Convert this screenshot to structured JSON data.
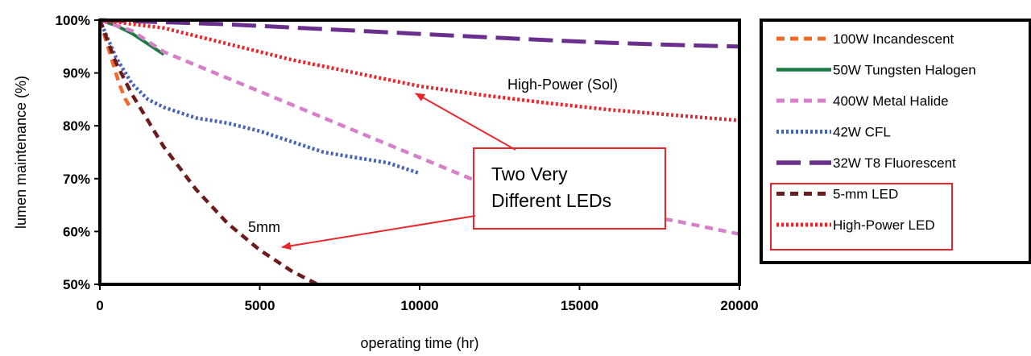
{
  "chart_data": {
    "type": "line",
    "xlabel": "operating time (hr)",
    "ylabel": "lumen maintenance (%)",
    "xlim": [
      0,
      20000
    ],
    "ylim": [
      50,
      100
    ],
    "x_ticks": [
      "0",
      "5000",
      "10000",
      "15000",
      "20000"
    ],
    "y_ticks": [
      "50%",
      "60%",
      "70%",
      "80%",
      "90%",
      "100%"
    ],
    "grid": false,
    "legend_position": "right",
    "series": [
      {
        "name": "100W Incandescent",
        "color": "#f26a2a",
        "style": "dash",
        "points": [
          [
            0,
            100
          ],
          [
            200,
            96
          ],
          [
            400,
            92
          ],
          [
            600,
            88
          ],
          [
            800,
            85
          ],
          [
            1000,
            83
          ]
        ]
      },
      {
        "name": "50W Tungsten Halogen",
        "color": "#1e7a45",
        "style": "solid",
        "points": [
          [
            0,
            100
          ],
          [
            500,
            99
          ],
          [
            1000,
            97.5
          ],
          [
            1500,
            95.5
          ],
          [
            2000,
            93.5
          ]
        ]
      },
      {
        "name": "400W Metal Halide",
        "color": "#d77fc9",
        "style": "dash",
        "points": [
          [
            0,
            100
          ],
          [
            1000,
            98
          ],
          [
            2000,
            94
          ],
          [
            4000,
            89
          ],
          [
            6000,
            84
          ],
          [
            8000,
            79
          ],
          [
            10000,
            74
          ],
          [
            12000,
            69
          ],
          [
            14000,
            66
          ],
          [
            16000,
            64
          ],
          [
            18000,
            62
          ],
          [
            20000,
            59.5
          ]
        ]
      },
      {
        "name": "42W CFL",
        "color": "#4863b5",
        "style": "dot",
        "points": [
          [
            0,
            100
          ],
          [
            500,
            93
          ],
          [
            1000,
            88
          ],
          [
            1500,
            85
          ],
          [
            2000,
            83.5
          ],
          [
            3000,
            81.5
          ],
          [
            4000,
            80.5
          ],
          [
            5000,
            79
          ],
          [
            6000,
            77
          ],
          [
            7000,
            75
          ],
          [
            8000,
            74
          ],
          [
            9000,
            73
          ],
          [
            10000,
            71
          ]
        ]
      },
      {
        "name": "32W T8 Fluorescent",
        "color": "#6a2f8c",
        "style": "longdash",
        "points": [
          [
            0,
            100
          ],
          [
            2000,
            99.6
          ],
          [
            4000,
            99.2
          ],
          [
            6000,
            98.6
          ],
          [
            8000,
            98
          ],
          [
            10000,
            97.4
          ],
          [
            12000,
            96.8
          ],
          [
            14000,
            96.2
          ],
          [
            16000,
            95.7
          ],
          [
            18000,
            95.3
          ],
          [
            20000,
            95
          ]
        ]
      },
      {
        "name": "5-mm LED",
        "color": "#6b1c1c",
        "style": "dash",
        "points": [
          [
            0,
            100
          ],
          [
            500,
            92
          ],
          [
            1000,
            86
          ],
          [
            1500,
            81
          ],
          [
            2000,
            76
          ],
          [
            3000,
            68
          ],
          [
            4000,
            61.5
          ],
          [
            5000,
            56.5
          ],
          [
            6000,
            52.5
          ],
          [
            6800,
            50
          ]
        ]
      },
      {
        "name": "High-Power LED",
        "color": "#e8262b",
        "style": "dot",
        "points": [
          [
            0,
            100
          ],
          [
            2000,
            98.5
          ],
          [
            4000,
            95.5
          ],
          [
            6000,
            92.5
          ],
          [
            8000,
            90
          ],
          [
            10000,
            87.5
          ],
          [
            12000,
            85.8
          ],
          [
            14000,
            84.3
          ],
          [
            16000,
            83
          ],
          [
            18000,
            82
          ],
          [
            20000,
            81
          ]
        ]
      }
    ],
    "annotations": {
      "highpower_sol": "High-Power (Sol)",
      "five_mm": "5mm",
      "callout_line1": "Two Very",
      "callout_line2": "Different LEDs"
    }
  }
}
